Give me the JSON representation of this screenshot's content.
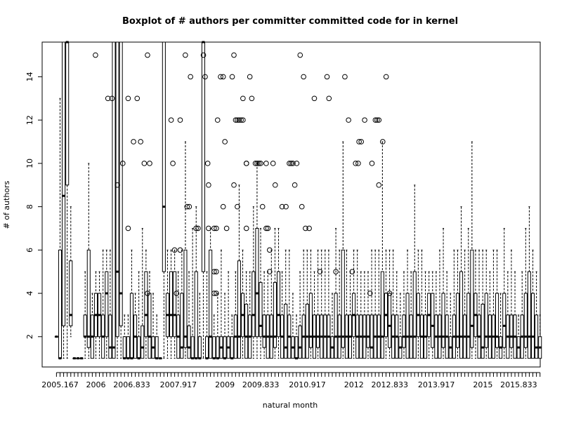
{
  "chart_data": {
    "type": "boxplot",
    "title": "Boxplot of # authors per committer committed code for in kernel",
    "xlabel": "natural month",
    "ylabel": "# of authors",
    "ylim": [
      0.6,
      15.6
    ],
    "y_ticks": [
      2,
      4,
      6,
      8,
      10,
      12,
      14
    ],
    "x_tick_labels": [
      "2005.167",
      "2006",
      "2006.833",
      "2007.917",
      "2009",
      "2009.833",
      "2010.917",
      "2012",
      "2012.833",
      "2013.917",
      "2015",
      "2015.833"
    ],
    "x_tick_positions": [
      2005.167,
      2006.0,
      2006.833,
      2007.917,
      2009.0,
      2009.833,
      2010.917,
      2012.0,
      2012.833,
      2013.917,
      2015.0,
      2015.833
    ],
    "xlim": [
      2004.75,
      2016.333
    ],
    "months_start": 2005.083,
    "month_step": 0.0833,
    "stats": [
      [
        2,
        2,
        2,
        2,
        2
      ],
      [
        1,
        1,
        1,
        6,
        13
      ],
      [
        1,
        2.5,
        8.5,
        15.6,
        15.6
      ],
      [
        1,
        9,
        15.6,
        15.6,
        15.6
      ],
      [
        2,
        2.5,
        3,
        5.5,
        8
      ],
      [
        1,
        1,
        1,
        1,
        1
      ],
      [
        1,
        1,
        1,
        1,
        1
      ],
      [
        1,
        1,
        1,
        1,
        1
      ],
      [
        1,
        2,
        2,
        3,
        5
      ],
      [
        1,
        1.5,
        2,
        6,
        10
      ],
      [
        1,
        1,
        2,
        3,
        4
      ],
      [
        1,
        2,
        3,
        4,
        5
      ],
      [
        1,
        2,
        3,
        4,
        5
      ],
      [
        1,
        1,
        2,
        3,
        6
      ],
      [
        1,
        2,
        4,
        5,
        6
      ],
      [
        1,
        1,
        1.5,
        3,
        6
      ],
      [
        1,
        1,
        1.5,
        15.6,
        15.6
      ],
      [
        1,
        2,
        5,
        15.6,
        15.6
      ],
      [
        1,
        2.5,
        4,
        15.6,
        15.6
      ],
      [
        1,
        1,
        1,
        2,
        3
      ],
      [
        1,
        1,
        1,
        2,
        3
      ],
      [
        1,
        1,
        1,
        4,
        6
      ],
      [
        1,
        1,
        2,
        3,
        4
      ],
      [
        1,
        1,
        1,
        2,
        5
      ],
      [
        1,
        1,
        1.5,
        2.5,
        7
      ],
      [
        1,
        2,
        3,
        5,
        6
      ],
      [
        1,
        1,
        2,
        4,
        5
      ],
      [
        1,
        1,
        1.5,
        2,
        4
      ],
      [
        1,
        1,
        1,
        2,
        3
      ],
      [
        1,
        1,
        1,
        1,
        1
      ],
      [
        1,
        5,
        8,
        15.6,
        15.6
      ],
      [
        1,
        2,
        3,
        4,
        6
      ],
      [
        1,
        2,
        3,
        5,
        6
      ],
      [
        1,
        2,
        3,
        5,
        6
      ],
      [
        1,
        1,
        2,
        3,
        5
      ],
      [
        1,
        1,
        1.5,
        4,
        6
      ],
      [
        1,
        1.5,
        2,
        6,
        11
      ],
      [
        1,
        1,
        1.5,
        2.5,
        5
      ],
      [
        1,
        1,
        1,
        2,
        7
      ],
      [
        1,
        1,
        1,
        5,
        8
      ],
      [
        1,
        1,
        1,
        2,
        4
      ],
      [
        1,
        5,
        15.6,
        15.6,
        15.6
      ],
      [
        1,
        1,
        1,
        2,
        5
      ],
      [
        1,
        1,
        2,
        6,
        7
      ],
      [
        1,
        1,
        1,
        2,
        3
      ],
      [
        1,
        1,
        1,
        2,
        4
      ],
      [
        1,
        1,
        1.5,
        2,
        6
      ],
      [
        1,
        1,
        1,
        2,
        4
      ],
      [
        1,
        1,
        1.5,
        2,
        5
      ],
      [
        1,
        1,
        1,
        2,
        3
      ],
      [
        1,
        1,
        2,
        3,
        5
      ],
      [
        1,
        1,
        2,
        5.5,
        9
      ],
      [
        1,
        2,
        3,
        4,
        6
      ],
      [
        1,
        1,
        2,
        3.5,
        5
      ],
      [
        1,
        1,
        2,
        3,
        5
      ],
      [
        1,
        2,
        3,
        5,
        8
      ],
      [
        1,
        2,
        4,
        7,
        10
      ],
      [
        1,
        2,
        2.5,
        4.5,
        7
      ],
      [
        1,
        1.5,
        2,
        3,
        5
      ],
      [
        1,
        1,
        2,
        3,
        5
      ],
      [
        1,
        1,
        2,
        3,
        6
      ],
      [
        1,
        1.5,
        2,
        4.5,
        7
      ],
      [
        1,
        2,
        3,
        5,
        7
      ],
      [
        1,
        1,
        2,
        3,
        5
      ],
      [
        1,
        1,
        1.5,
        3.5,
        6
      ],
      [
        1,
        1,
        2,
        3,
        6
      ],
      [
        1,
        1,
        1.5,
        2,
        4
      ],
      [
        1,
        1,
        1,
        2,
        3
      ],
      [
        1,
        1,
        1.5,
        2.5,
        5
      ],
      [
        1,
        1,
        2,
        3,
        6
      ],
      [
        1,
        1,
        2,
        3.5,
        6
      ],
      [
        1,
        1.5,
        2,
        4,
        6
      ],
      [
        1,
        1,
        2,
        3,
        5
      ],
      [
        1,
        1.5,
        2,
        3,
        6
      ],
      [
        1,
        1,
        2,
        3,
        6
      ],
      [
        1,
        1,
        2,
        3,
        6
      ],
      [
        1,
        1,
        2,
        3,
        6
      ],
      [
        1,
        1,
        1.5,
        2,
        4
      ],
      [
        1,
        1,
        2,
        4,
        7
      ],
      [
        1,
        1,
        2,
        3,
        6
      ],
      [
        1,
        1.5,
        2,
        6,
        11
      ],
      [
        1,
        1,
        2,
        3,
        6
      ],
      [
        1,
        1,
        2,
        3,
        5
      ],
      [
        1,
        2,
        3,
        4,
        6
      ],
      [
        1,
        1,
        2,
        3,
        6
      ],
      [
        1,
        1,
        2,
        3,
        5
      ],
      [
        1,
        1,
        2,
        3,
        5
      ],
      [
        1,
        1.5,
        2,
        3,
        5
      ],
      [
        1,
        1,
        1.5,
        3,
        6
      ],
      [
        1,
        1,
        2,
        3,
        6
      ],
      [
        1,
        1,
        2,
        3,
        6
      ],
      [
        1,
        1,
        2,
        5,
        11
      ],
      [
        1,
        2,
        3,
        4,
        6
      ],
      [
        1,
        1.5,
        2.5,
        4,
        6
      ],
      [
        1,
        1,
        2,
        3,
        6
      ],
      [
        1,
        1,
        2,
        3,
        5
      ],
      [
        1,
        1,
        1.5,
        2,
        4
      ],
      [
        1,
        1.5,
        2,
        3,
        5
      ],
      [
        1,
        1,
        2,
        4,
        6
      ],
      [
        1,
        1,
        2,
        3,
        5
      ],
      [
        1,
        1,
        2,
        5,
        9
      ],
      [
        1,
        2,
        3,
        4,
        6
      ],
      [
        1,
        1,
        2,
        3,
        6
      ],
      [
        1,
        1,
        2,
        3,
        5
      ],
      [
        1,
        2,
        3,
        4,
        5
      ],
      [
        1,
        1.5,
        2.5,
        4,
        5
      ],
      [
        1,
        1,
        2,
        3,
        5
      ],
      [
        1,
        1,
        2,
        3,
        6
      ],
      [
        1,
        1.5,
        2,
        4,
        7
      ],
      [
        1,
        1,
        2,
        3,
        5
      ],
      [
        1,
        1,
        1.5,
        2,
        4
      ],
      [
        1,
        1,
        2,
        3,
        6
      ],
      [
        1,
        1.5,
        2,
        4,
        6
      ],
      [
        1,
        1,
        2,
        5,
        8
      ],
      [
        1,
        1,
        2,
        3,
        6
      ],
      [
        1,
        1,
        2,
        4,
        7
      ],
      [
        1,
        1.5,
        2.5,
        6,
        11
      ],
      [
        1,
        2,
        3,
        4,
        6
      ],
      [
        1,
        1,
        2,
        3,
        6
      ],
      [
        1,
        1,
        1.5,
        3.5,
        6
      ],
      [
        1,
        1.5,
        2,
        4,
        6
      ],
      [
        1,
        1,
        2,
        3,
        5
      ],
      [
        1,
        1,
        2,
        3,
        6
      ],
      [
        1,
        1.5,
        2,
        4,
        6
      ],
      [
        1,
        1,
        1.5,
        2,
        4
      ],
      [
        1,
        1.5,
        2.5,
        4,
        7
      ],
      [
        1,
        1,
        2,
        3,
        5
      ],
      [
        1,
        1.5,
        2,
        3,
        6
      ],
      [
        1,
        1,
        2,
        3,
        5
      ],
      [
        1,
        1,
        1.5,
        2,
        3
      ],
      [
        1,
        1,
        2,
        3,
        5
      ],
      [
        1,
        1.5,
        2,
        4,
        7
      ],
      [
        1,
        1,
        2,
        5,
        8
      ],
      [
        1,
        1,
        2,
        4,
        6
      ],
      [
        1,
        1,
        1.5,
        3,
        5
      ],
      [
        1,
        1,
        1.5,
        2,
        3
      ]
    ],
    "outliers": [
      [
        2005.99,
        15
      ],
      [
        2006.28,
        13
      ],
      [
        2006.375,
        13
      ],
      [
        2006.5,
        9
      ],
      [
        2006.625,
        10
      ],
      [
        2006.75,
        7
      ],
      [
        2006.75,
        13
      ],
      [
        2006.875,
        11
      ],
      [
        2006.96,
        13
      ],
      [
        2007.04,
        11
      ],
      [
        2007.125,
        10
      ],
      [
        2007.2,
        15
      ],
      [
        2007.25,
        10
      ],
      [
        2007.2,
        4
      ],
      [
        2007.75,
        12
      ],
      [
        2007.79,
        10
      ],
      [
        2007.83,
        6
      ],
      [
        2007.875,
        4
      ],
      [
        2007.96,
        12
      ],
      [
        2007.96,
        6
      ],
      [
        2008.08,
        15
      ],
      [
        2008.12,
        8
      ],
      [
        2008.17,
        8
      ],
      [
        2008.2,
        14
      ],
      [
        2008.33,
        7
      ],
      [
        2008.375,
        7
      ],
      [
        2008.5,
        15
      ],
      [
        2008.54,
        14
      ],
      [
        2008.6,
        10
      ],
      [
        2008.62,
        9
      ],
      [
        2008.62,
        7
      ],
      [
        2008.75,
        7
      ],
      [
        2008.75,
        5
      ],
      [
        2008.8,
        7
      ],
      [
        2008.8,
        5
      ],
      [
        2008.75,
        4
      ],
      [
        2008.8,
        4
      ],
      [
        2008.83,
        12
      ],
      [
        2008.9,
        14
      ],
      [
        2008.96,
        14
      ],
      [
        2008.96,
        8
      ],
      [
        2009.0,
        11
      ],
      [
        2009.04,
        7
      ],
      [
        2009.17,
        14
      ],
      [
        2009.21,
        15
      ],
      [
        2009.21,
        9
      ],
      [
        2009.25,
        12
      ],
      [
        2009.29,
        8
      ],
      [
        2009.29,
        12
      ],
      [
        2009.33,
        12
      ],
      [
        2009.375,
        12
      ],
      [
        2009.42,
        12
      ],
      [
        2009.42,
        13
      ],
      [
        2009.5,
        7
      ],
      [
        2009.5,
        10
      ],
      [
        2009.5,
        10
      ],
      [
        2009.58,
        14
      ],
      [
        2009.625,
        13
      ],
      [
        2009.71,
        10
      ],
      [
        2009.75,
        10
      ],
      [
        2009.79,
        10
      ],
      [
        2009.83,
        10
      ],
      [
        2009.875,
        8
      ],
      [
        2009.96,
        7
      ],
      [
        2009.96,
        10
      ],
      [
        2010.0,
        7
      ],
      [
        2010.04,
        6
      ],
      [
        2010.04,
        5
      ],
      [
        2010.12,
        10
      ],
      [
        2010.17,
        9
      ],
      [
        2010.33,
        8
      ],
      [
        2010.42,
        8
      ],
      [
        2010.5,
        10
      ],
      [
        2010.54,
        10
      ],
      [
        2010.58,
        10
      ],
      [
        2010.625,
        9
      ],
      [
        2010.67,
        10
      ],
      [
        2010.75,
        15
      ],
      [
        2010.79,
        8
      ],
      [
        2010.83,
        14
      ],
      [
        2010.875,
        7
      ],
      [
        2010.96,
        7
      ],
      [
        2011.08,
        13
      ],
      [
        2011.21,
        5
      ],
      [
        2011.375,
        14
      ],
      [
        2011.42,
        13
      ],
      [
        2011.58,
        5
      ],
      [
        2011.79,
        14
      ],
      [
        2011.875,
        12
      ],
      [
        2011.96,
        5
      ],
      [
        2012.04,
        10
      ],
      [
        2012.1,
        10
      ],
      [
        2012.12,
        11
      ],
      [
        2012.17,
        11
      ],
      [
        2012.25,
        12
      ],
      [
        2012.375,
        4
      ],
      [
        2012.42,
        10
      ],
      [
        2012.5,
        12
      ],
      [
        2012.54,
        12
      ],
      [
        2012.58,
        12
      ],
      [
        2012.58,
        9
      ],
      [
        2012.67,
        11
      ],
      [
        2012.75,
        14
      ],
      [
        2012.83,
        4
      ]
    ]
  }
}
